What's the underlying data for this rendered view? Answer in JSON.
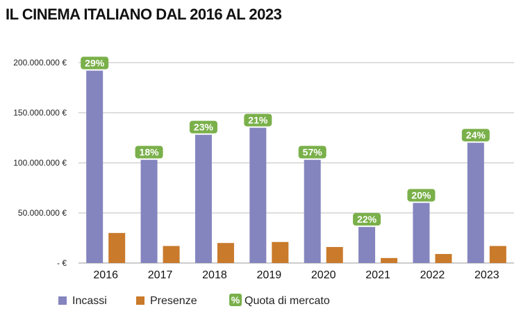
{
  "chart_data": {
    "type": "bar",
    "title": "IL CINEMA ITALIANO DAL 2016 AL 2023",
    "categories": [
      "2016",
      "2017",
      "2018",
      "2019",
      "2020",
      "2021",
      "2022",
      "2023"
    ],
    "series": [
      {
        "name": "Incassi",
        "color": "#8484bf",
        "values": [
          192000000,
          103000000,
          128000000,
          135000000,
          103000000,
          36000000,
          60000000,
          120000000
        ]
      },
      {
        "name": "Presenze",
        "color": "#c97a2b",
        "values": [
          30000000,
          17000000,
          20000000,
          21000000,
          16000000,
          5000000,
          9000000,
          17000000
        ]
      }
    ],
    "annotation_series": {
      "name": "Quota di mercato",
      "color": "#7ab04a",
      "values": [
        "29%",
        "18%",
        "23%",
        "21%",
        "57%",
        "22%",
        "20%",
        "24%"
      ]
    },
    "ylim": [
      0,
      200000000
    ],
    "yticks": [
      0,
      50000000,
      100000000,
      150000000,
      200000000
    ],
    "ytick_labels": [
      "-   €",
      "50.000.000 €",
      "100.000.000 €",
      "150.000.000 €",
      "200.000.000 €"
    ],
    "grid": true,
    "legend": {
      "placement": "bottom-left",
      "items": [
        {
          "label": "Incassi",
          "color": "#8484bf"
        },
        {
          "label": "Presenze",
          "color": "#c97a2b"
        },
        {
          "label": "Quota di mercato",
          "color": "#7ab04a",
          "marker": "%"
        }
      ]
    }
  }
}
